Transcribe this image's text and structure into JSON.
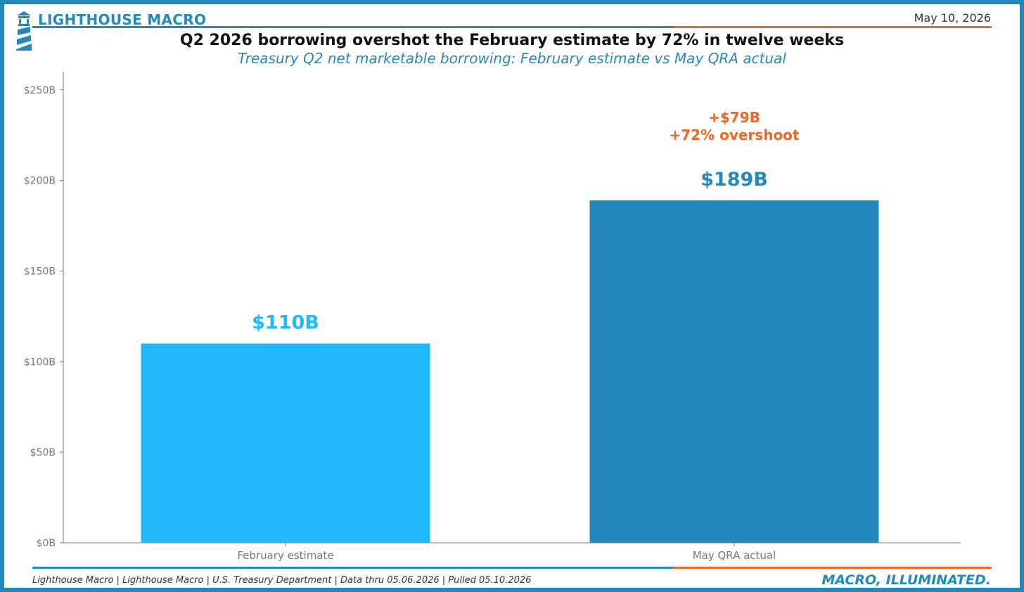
{
  "header": {
    "brand": "LIGHTHOUSE MACRO",
    "date": "May 10, 2026",
    "title": "Q2 2026 borrowing overshot the February estimate by 72% in twelve weeks",
    "subtitle": "Treasury Q2 net marketable borrowing: February estimate vs May QRA actual"
  },
  "footer": {
    "source": "Lighthouse Macro | Lighthouse Macro | U.S. Treasury Department | Data thru 05.06.2026 | Pulled 05.10.2026",
    "tagline": "MACRO, ILLUMINATED."
  },
  "colors": {
    "brand_blue": "#2389bb",
    "light_blue": "#21bbfd",
    "orange": "#f26522",
    "axis_gray": "#666666"
  },
  "icons": [
    "lighthouse-icon"
  ],
  "chart_data": {
    "type": "bar",
    "categories": [
      "February estimate",
      "May QRA actual"
    ],
    "values": [
      110,
      189
    ],
    "value_labels": [
      "$110B",
      "$189B"
    ],
    "bar_colors": [
      "#21bbfd",
      "#2389bb"
    ],
    "ylim": [
      0,
      260
    ],
    "yticks": [
      0,
      50,
      100,
      150,
      200,
      250
    ],
    "ytick_labels": [
      "$0B",
      "$50B",
      "$100B",
      "$150B",
      "$200B",
      "$250B"
    ],
    "xlabel": "",
    "ylabel": "",
    "grid": false,
    "annotation": {
      "category": "May QRA actual",
      "lines": [
        "+$79B",
        "+72% overshoot"
      ],
      "color": "#f26522"
    }
  }
}
